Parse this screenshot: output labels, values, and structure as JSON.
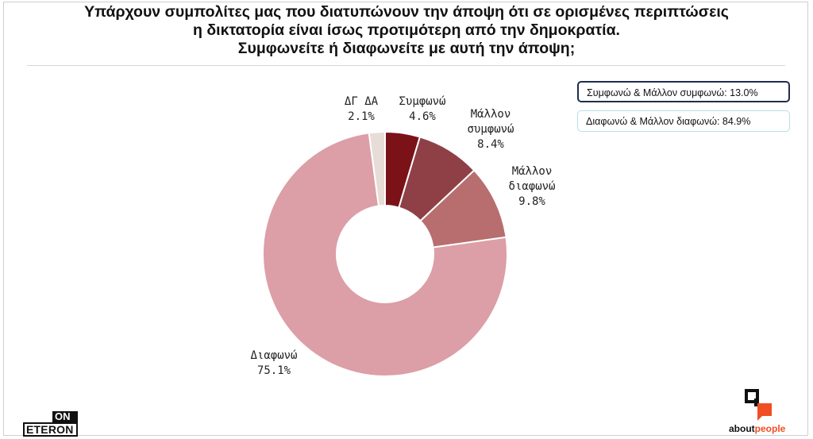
{
  "title": {
    "line1": "Υπάρχουν συμπολίτες μας που διατυπώνουν την άποψη ότι σε ορισμένες περιπτώσεις",
    "line2": "η δικτατορία είναι ίσως προτιμότερη από την δημοκρατία.",
    "line3": "Συμφωνείτε ή διαφωνείτε με αυτή την άποψη;"
  },
  "summary": {
    "agree": "Συμφωνώ & Μάλλον συμφωνώ: 13.0%",
    "disagree": "Διαφωνώ & Μάλλον διαφωνώ: 84.9%"
  },
  "colors": {
    "agree": "#7a1218",
    "mostly_agree": "#8f4047",
    "mostly_disagree": "#b86e6e",
    "disagree": "#dc9ea7",
    "dk_na": "#e7ddd6",
    "summary_agree_border": "#1f2d4d",
    "summary_disagree_border": "#b9dde8"
  },
  "chart_data": {
    "type": "pie",
    "donut": true,
    "slices": [
      {
        "label": "Συμφωνώ",
        "value": 4.6,
        "value_label": "4.6%",
        "color": "#7a1218"
      },
      {
        "label": "Μάλλον συμφωνώ",
        "label_lines": [
          "Μάλλον",
          "συμφωνώ"
        ],
        "value": 8.4,
        "value_label": "8.4%",
        "color": "#8f4047"
      },
      {
        "label": "Μάλλον διαφωνώ",
        "label_lines": [
          "Μάλλον",
          "διαφωνώ"
        ],
        "value": 9.8,
        "value_label": "9.8%",
        "color": "#b86e6e"
      },
      {
        "label": "Διαφωνώ",
        "value": 75.1,
        "value_label": "75.1%",
        "color": "#dc9ea7"
      },
      {
        "label": "ΔΓ ΔΑ",
        "value": 2.1,
        "value_label": "2.1%",
        "color": "#e7ddd6"
      }
    ]
  },
  "logos": {
    "on_top": "ON",
    "on_bottom": "ETERON",
    "ap_part1": "about",
    "ap_part2": "people"
  }
}
